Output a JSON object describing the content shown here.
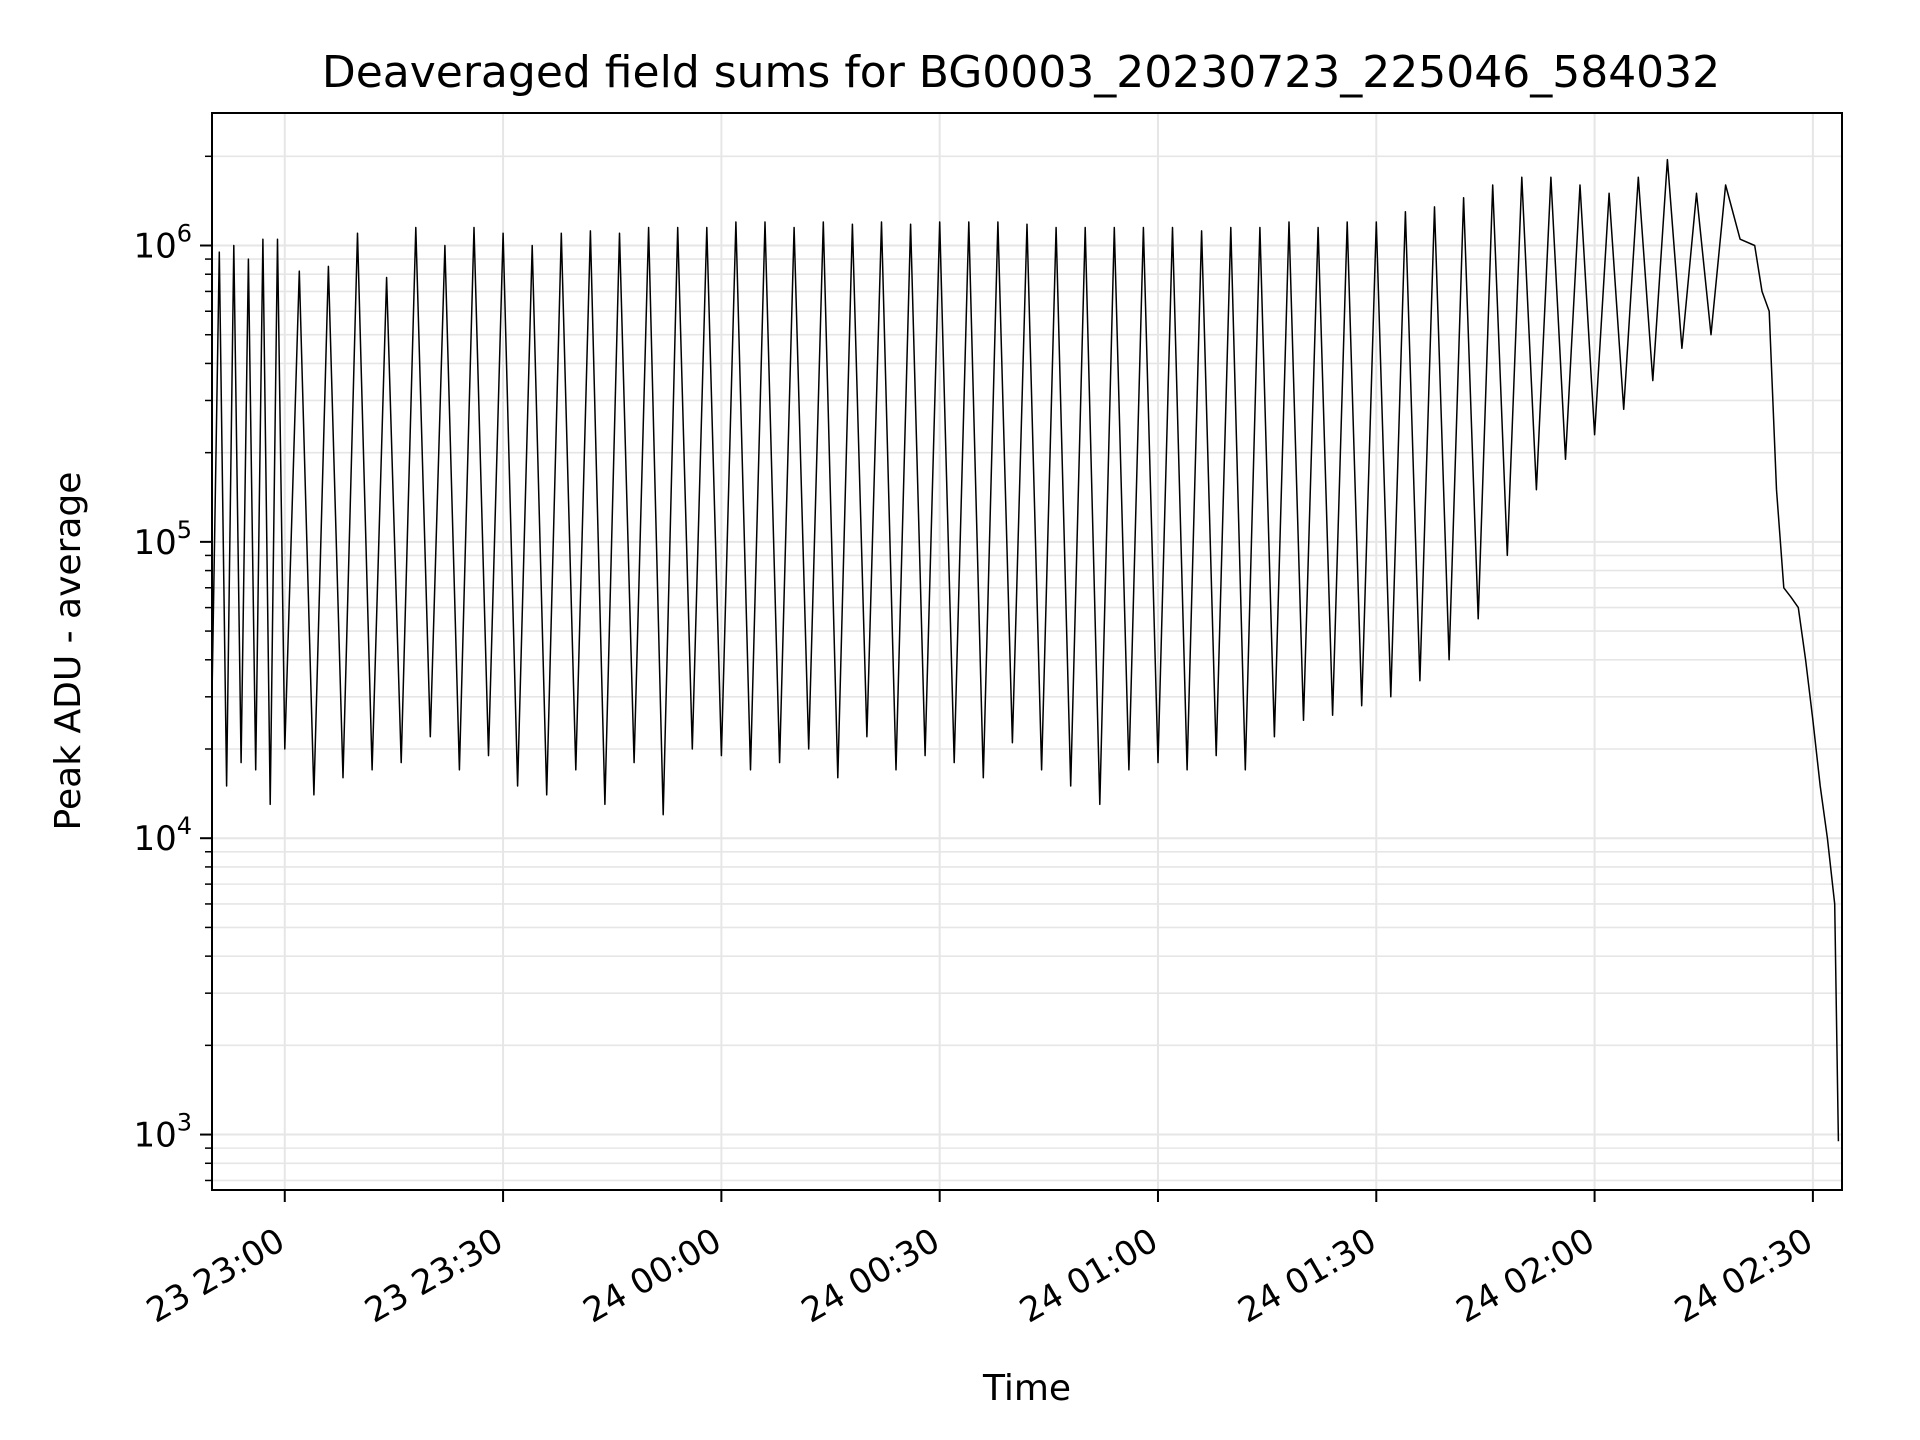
{
  "chart_data": {
    "type": "line",
    "title": "Deaveraged field sums for BG0003_20230723_225046_584032",
    "xlabel": "Time",
    "ylabel": "Peak ADU - average",
    "x_scale": "time",
    "y_scale": "log",
    "xlim": [
      "2023-07-23T22:50:00",
      "2023-07-24T02:34:00"
    ],
    "ylim": [
      650,
      2800000
    ],
    "grid": true,
    "line_color": "#000000",
    "grid_color": "#e6e6e6",
    "x_ticks": [
      {
        "value": "2023-07-23T23:00:00",
        "label": "23 23:00"
      },
      {
        "value": "2023-07-23T23:30:00",
        "label": "23 23:30"
      },
      {
        "value": "2023-07-24T00:00:00",
        "label": "24 00:00"
      },
      {
        "value": "2023-07-24T00:30:00",
        "label": "24 00:30"
      },
      {
        "value": "2023-07-24T01:00:00",
        "label": "24 01:00"
      },
      {
        "value": "2023-07-24T01:30:00",
        "label": "24 01:30"
      },
      {
        "value": "2023-07-24T02:00:00",
        "label": "24 02:00"
      },
      {
        "value": "2023-07-24T02:30:00",
        "label": "24 02:30"
      }
    ],
    "y_ticks": [
      {
        "value": 1000,
        "base": "10",
        "exp": "3"
      },
      {
        "value": 10000,
        "base": "10",
        "exp": "4"
      },
      {
        "value": 100000,
        "base": "10",
        "exp": "5"
      },
      {
        "value": 1000000,
        "base": "10",
        "exp": "6"
      }
    ],
    "series": [
      {
        "name": "",
        "x": [
          "2023-07-23T22:50:00",
          "2023-07-23T22:51:00",
          "2023-07-23T22:52:00",
          "2023-07-23T22:53:00",
          "2023-07-23T22:54:00",
          "2023-07-23T22:55:00",
          "2023-07-23T22:56:00",
          "2023-07-23T22:57:00",
          "2023-07-23T22:58:00",
          "2023-07-23T22:59:00",
          "2023-07-23T23:00:00",
          "2023-07-23T23:02:00",
          "2023-07-23T23:04:00",
          "2023-07-23T23:06:00",
          "2023-07-23T23:08:00",
          "2023-07-23T23:10:00",
          "2023-07-23T23:12:00",
          "2023-07-23T23:14:00",
          "2023-07-23T23:16:00",
          "2023-07-23T23:18:00",
          "2023-07-23T23:20:00",
          "2023-07-23T23:22:00",
          "2023-07-23T23:24:00",
          "2023-07-23T23:26:00",
          "2023-07-23T23:28:00",
          "2023-07-23T23:30:00",
          "2023-07-23T23:32:00",
          "2023-07-23T23:34:00",
          "2023-07-23T23:36:00",
          "2023-07-23T23:38:00",
          "2023-07-23T23:40:00",
          "2023-07-23T23:42:00",
          "2023-07-23T23:44:00",
          "2023-07-23T23:46:00",
          "2023-07-23T23:48:00",
          "2023-07-23T23:50:00",
          "2023-07-23T23:52:00",
          "2023-07-23T23:54:00",
          "2023-07-23T23:56:00",
          "2023-07-23T23:58:00",
          "2023-07-24T00:00:00",
          "2023-07-24T00:02:00",
          "2023-07-24T00:04:00",
          "2023-07-24T00:06:00",
          "2023-07-24T00:08:00",
          "2023-07-24T00:10:00",
          "2023-07-24T00:12:00",
          "2023-07-24T00:14:00",
          "2023-07-24T00:16:00",
          "2023-07-24T00:18:00",
          "2023-07-24T00:20:00",
          "2023-07-24T00:22:00",
          "2023-07-24T00:24:00",
          "2023-07-24T00:26:00",
          "2023-07-24T00:28:00",
          "2023-07-24T00:30:00",
          "2023-07-24T00:32:00",
          "2023-07-24T00:34:00",
          "2023-07-24T00:36:00",
          "2023-07-24T00:38:00",
          "2023-07-24T00:40:00",
          "2023-07-24T00:42:00",
          "2023-07-24T00:44:00",
          "2023-07-24T00:46:00",
          "2023-07-24T00:48:00",
          "2023-07-24T00:50:00",
          "2023-07-24T00:52:00",
          "2023-07-24T00:54:00",
          "2023-07-24T00:56:00",
          "2023-07-24T00:58:00",
          "2023-07-24T01:00:00",
          "2023-07-24T01:02:00",
          "2023-07-24T01:04:00",
          "2023-07-24T01:06:00",
          "2023-07-24T01:08:00",
          "2023-07-24T01:10:00",
          "2023-07-24T01:12:00",
          "2023-07-24T01:14:00",
          "2023-07-24T01:16:00",
          "2023-07-24T01:18:00",
          "2023-07-24T01:20:00",
          "2023-07-24T01:22:00",
          "2023-07-24T01:24:00",
          "2023-07-24T01:26:00",
          "2023-07-24T01:28:00",
          "2023-07-24T01:30:00",
          "2023-07-24T01:32:00",
          "2023-07-24T01:34:00",
          "2023-07-24T01:36:00",
          "2023-07-24T01:38:00",
          "2023-07-24T01:40:00",
          "2023-07-24T01:42:00",
          "2023-07-24T01:44:00",
          "2023-07-24T01:46:00",
          "2023-07-24T01:48:00",
          "2023-07-24T01:50:00",
          "2023-07-24T01:52:00",
          "2023-07-24T01:54:00",
          "2023-07-24T01:56:00",
          "2023-07-24T01:58:00",
          "2023-07-24T02:00:00",
          "2023-07-24T02:02:00",
          "2023-07-24T02:04:00",
          "2023-07-24T02:06:00",
          "2023-07-24T02:08:00",
          "2023-07-24T02:10:00",
          "2023-07-24T02:12:00",
          "2023-07-24T02:14:00",
          "2023-07-24T02:16:00",
          "2023-07-24T02:18:00",
          "2023-07-24T02:20:00",
          "2023-07-24T02:22:00",
          "2023-07-24T02:23:00",
          "2023-07-24T02:24:00",
          "2023-07-24T02:25:00",
          "2023-07-24T02:26:00",
          "2023-07-24T02:27:00",
          "2023-07-24T02:28:00",
          "2023-07-24T02:29:00",
          "2023-07-24T02:30:00",
          "2023-07-24T02:31:00",
          "2023-07-24T02:32:00",
          "2023-07-24T02:33:00",
          "2023-07-24T02:33:30"
        ],
        "y": [
          30000,
          950000,
          15000,
          1000000,
          18000,
          900000,
          17000,
          1050000,
          13000,
          1050000,
          20000,
          820000,
          14000,
          850000,
          16000,
          1100000,
          17000,
          780000,
          18000,
          1150000,
          22000,
          1000000,
          17000,
          1150000,
          19000,
          1100000,
          15000,
          1000000,
          14000,
          1100000,
          17000,
          1120000,
          13000,
          1100000,
          18000,
          1150000,
          12000,
          1150000,
          20000,
          1150000,
          19000,
          1200000,
          17000,
          1200000,
          18000,
          1150000,
          20000,
          1200000,
          16000,
          1180000,
          22000,
          1200000,
          17000,
          1180000,
          19000,
          1200000,
          18000,
          1200000,
          16000,
          1200000,
          21000,
          1180000,
          17000,
          1150000,
          15000,
          1150000,
          13000,
          1150000,
          17000,
          1150000,
          18000,
          1150000,
          17000,
          1120000,
          19000,
          1150000,
          17000,
          1150000,
          22000,
          1200000,
          25000,
          1150000,
          26000,
          1200000,
          28000,
          1200000,
          30000,
          1300000,
          34000,
          1350000,
          40000,
          1450000,
          55000,
          1600000,
          90000,
          1700000,
          150000,
          1700000,
          190000,
          1600000,
          230000,
          1500000,
          280000,
          1700000,
          350000,
          1950000,
          450000,
          1500000,
          500000,
          1600000,
          1050000,
          1000000,
          700000,
          600000,
          150000,
          70000,
          65000,
          60000,
          40000,
          25000,
          15000,
          10000,
          6000,
          950
        ]
      }
    ]
  }
}
